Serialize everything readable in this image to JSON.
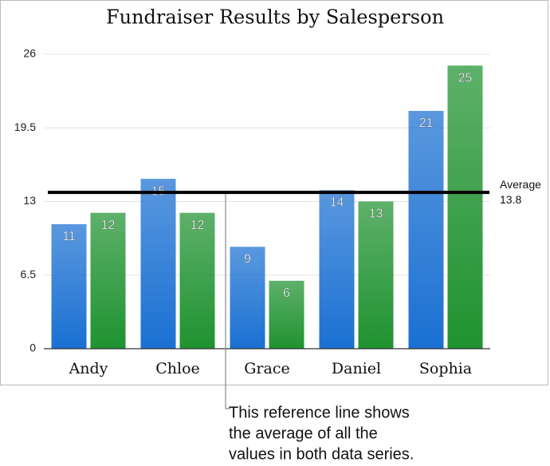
{
  "chart_data": {
    "type": "bar",
    "title": "Fundraiser Results by Salesperson",
    "categories": [
      "Andy",
      "Chloe",
      "Grace",
      "Daniel",
      "Sophia"
    ],
    "series": [
      {
        "color": "#1a70d2",
        "values": [
          11,
          15,
          9,
          14,
          21
        ]
      },
      {
        "color": "#1f9230",
        "values": [
          12,
          12,
          6,
          13,
          25
        ]
      }
    ],
    "ylim": [
      0,
      26
    ],
    "yticks": [
      0,
      6.5,
      13,
      19.5,
      26
    ],
    "grid": true,
    "reference_line": {
      "label": "Average",
      "value": 13.8
    },
    "annotation": [
      "This reference line shows",
      "the average of all the",
      "values in both data series."
    ]
  }
}
